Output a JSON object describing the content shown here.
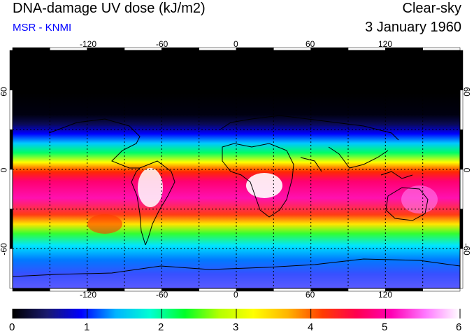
{
  "header": {
    "title": "DNA-damage UV dose (kJ/m2)",
    "subtitle": "MSR - KNMI",
    "condition": "Clear-sky",
    "date": "3 January 1960"
  },
  "map": {
    "projection": "equirectangular",
    "lon_range": [
      -180,
      180
    ],
    "lat_range": [
      -90,
      90
    ],
    "lon_ticks": [
      -120,
      -60,
      0,
      60,
      120
    ],
    "lat_ticks": [
      60,
      0,
      -60
    ],
    "lon_tick_labels": [
      "-120",
      "-60",
      "0",
      "60",
      "120"
    ],
    "lat_tick_labels": [
      "60",
      "0",
      "-60"
    ],
    "gridlines": "dotted every 30 degrees",
    "colorbar": {
      "min": 0,
      "max": 6,
      "labels": [
        "0",
        "1",
        "2",
        "3",
        "4",
        "5",
        "6"
      ],
      "colors": [
        "#000000",
        "#1a1a6e",
        "#0000ff",
        "#00b4ff",
        "#00ffd2",
        "#00ff28",
        "#b4ff00",
        "#ffff00",
        "#ffb400",
        "#ff3c00",
        "#ff0050",
        "#ff00b4",
        "#ff78ff",
        "#ffffff"
      ]
    }
  }
}
